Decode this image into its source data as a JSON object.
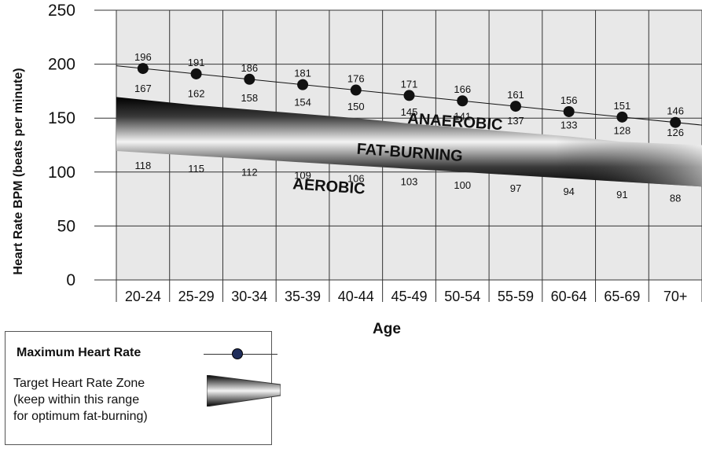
{
  "chart_data": {
    "type": "line",
    "xlabel": "Age",
    "ylabel": "Heart Rate BPM (beats per minute)",
    "ylim": [
      0,
      250
    ],
    "yticks": [
      0,
      50,
      100,
      150,
      200,
      250
    ],
    "categories": [
      "20-24",
      "25-29",
      "30-34",
      "35-39",
      "40-44",
      "45-49",
      "50-54",
      "55-59",
      "60-64",
      "65-69",
      "70+"
    ],
    "series": [
      {
        "name": "Maximum Heart Rate",
        "values": [
          196,
          191,
          186,
          181,
          176,
          171,
          166,
          161,
          156,
          151,
          146
        ]
      },
      {
        "name": "Target Heart Rate Zone upper",
        "values": [
          167,
          162,
          158,
          154,
          150,
          145,
          141,
          137,
          133,
          128,
          126
        ]
      },
      {
        "name": "Target Heart Rate Zone lower",
        "values": [
          118,
          115,
          112,
          109,
          106,
          103,
          100,
          97,
          94,
          91,
          88
        ]
      }
    ],
    "zone_labels": [
      "ANAEROBIC",
      "FAT-BURNING",
      "AEROBIC"
    ],
    "grid": true
  },
  "legend": {
    "max_label": "Maximum Heart Rate",
    "zone_label": "Target Heart Rate Zone\n(keep within this range\nfor optimum fat-burning)"
  },
  "colors": {
    "plot_bg": "#e8e8e8",
    "grid": "#333333",
    "marker": "#111111",
    "legend_marker": "#1f2d5a"
  }
}
